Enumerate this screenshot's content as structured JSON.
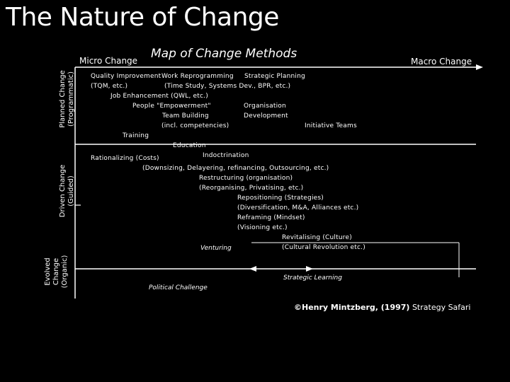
{
  "title": "The Nature of Change",
  "map_title": "Map of Change Methods",
  "scale": {
    "left": "Micro Change",
    "right": "Macro Change"
  },
  "row_labels": {
    "planned": [
      "Planned Change",
      "(Programmatic)"
    ],
    "driven": [
      "Driven Change",
      "(Guided)"
    ],
    "evolved": [
      "Evolved",
      "Change",
      "(Organic)"
    ]
  },
  "methods": {
    "quality_improvement": "Quality Improvement",
    "work_reprogramming": "Work Reprogramming",
    "strategic_planning": "Strategic Planning",
    "tqm": "(TQM, etc.)",
    "time_study": "(Time Study, Systems Dev., BPR, etc.)",
    "job_enhancement": "Job Enhancement (QWL, etc.)",
    "people_empowerment": "People \"Empowerment\"",
    "organisation": "Organisation",
    "team_building": "Team Building",
    "development": "Development",
    "incl_competencies": "(incl. competencies)",
    "initiative_teams": "Initiative Teams",
    "training": "Training",
    "education": "Education",
    "indoctrination": "Indoctrination",
    "rationalizing": "Rationalizing (Costs)",
    "downsizing": "(Downsizing, Delayering, refinancing, Outsourcing, etc.)",
    "restructuring": "Restructuring (organisation)",
    "reorganising": "(Reorganising, Privatising, etc.)",
    "repositioning": "Repositioning (Strategies)",
    "diversification": "(Diversification, M&A, Alliances etc.)",
    "reframing": "Reframing (Mindset)",
    "visioning": "(Visioning etc.)",
    "revitalising": "Revitalising (Culture)",
    "cultural_revolution": "(Cultural Revolution etc.)",
    "venturing": "Venturing",
    "strategic_learning": "Strategic Learning",
    "political_challenge": "Political Challenge"
  },
  "credit": {
    "prefix": "©Henry Mintzberg, (1997)",
    "book": " Strategy Safari"
  }
}
